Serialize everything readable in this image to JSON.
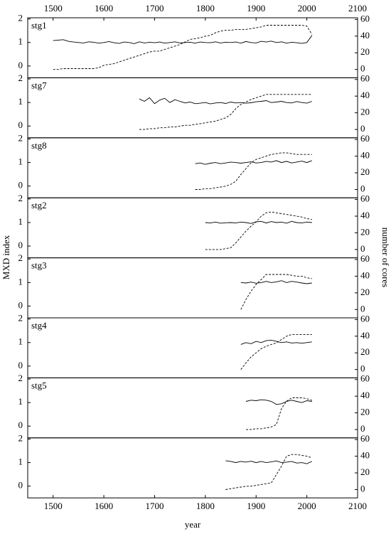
{
  "axis_labels": {
    "x": "year",
    "y": "MXD index",
    "y2": "number of cores"
  },
  "chart_data": [
    {
      "type": "line",
      "title": "stg1",
      "xlim": [
        1450,
        2100
      ],
      "ylim": [
        -0.5,
        2.05
      ],
      "y2lim": [
        -10,
        62
      ],
      "yticks": [
        0,
        1,
        2
      ],
      "y2ticks": [
        0,
        20,
        40,
        60
      ],
      "xticks": [
        1500,
        1600,
        1700,
        1800,
        1900,
        2000,
        2100
      ],
      "xtick_side": "top",
      "x": [
        1500,
        1510,
        1520,
        1530,
        1540,
        1550,
        1560,
        1570,
        1580,
        1590,
        1600,
        1610,
        1620,
        1630,
        1640,
        1650,
        1660,
        1670,
        1680,
        1690,
        1700,
        1710,
        1720,
        1730,
        1740,
        1750,
        1760,
        1770,
        1780,
        1790,
        1800,
        1810,
        1820,
        1830,
        1840,
        1850,
        1860,
        1870,
        1880,
        1890,
        1900,
        1910,
        1920,
        1930,
        1940,
        1950,
        1960,
        1970,
        1980,
        1990,
        2000,
        2010
      ],
      "series": [
        {
          "color": "#000000",
          "linestyle": "solid",
          "values": [
            1.08,
            1.1,
            1.12,
            1.05,
            1.02,
            1.0,
            0.98,
            1.03,
            1.01,
            0.97,
            1.0,
            1.04,
            0.99,
            0.96,
            1.02,
            1.0,
            0.95,
            1.03,
            0.98,
            1.01,
            0.99,
            1.02,
            0.97,
            1.0,
            1.03,
            0.98,
            1.0,
            1.01,
            0.97,
            1.02,
            1.0,
            0.99,
            1.03,
            0.98,
            1.01,
            1.0,
            1.02,
            0.97,
            1.04,
            1.0,
            0.98,
            1.05,
            1.02,
            1.06,
            1.0,
            1.03,
            0.97,
            1.01,
            0.99,
            0.96,
            1.0,
            1.3
          ]
        },
        {
          "color": "#000000",
          "linestyle": "dashed",
          "axis": "y2",
          "values": [
            0,
            0,
            1,
            1,
            1,
            1,
            1,
            1,
            1,
            2,
            5,
            6,
            7,
            9,
            11,
            13,
            15,
            17,
            19,
            21,
            22,
            22,
            24,
            26,
            28,
            30,
            33,
            36,
            37,
            38,
            40,
            41,
            44,
            46,
            47,
            47,
            48,
            48,
            48,
            49,
            50,
            51,
            53,
            53,
            53,
            53,
            53,
            53,
            53,
            53,
            52,
            42
          ]
        }
      ]
    },
    {
      "type": "line",
      "title": "stg7",
      "xlim": [
        1450,
        2100
      ],
      "ylim": [
        -0.5,
        2.05
      ],
      "y2lim": [
        -10,
        62
      ],
      "yticks": [
        0,
        1,
        2
      ],
      "y2ticks": [
        0,
        20,
        40,
        60
      ],
      "x": [
        1670,
        1680,
        1690,
        1700,
        1710,
        1720,
        1730,
        1740,
        1750,
        1760,
        1770,
        1780,
        1790,
        1800,
        1810,
        1820,
        1830,
        1840,
        1850,
        1860,
        1870,
        1880,
        1890,
        1900,
        1910,
        1920,
        1930,
        1940,
        1950,
        1960,
        1970,
        1980,
        1990,
        2000,
        2010
      ],
      "series": [
        {
          "color": "#000000",
          "linestyle": "solid",
          "values": [
            1.15,
            1.05,
            1.2,
            0.95,
            1.1,
            1.18,
            1.0,
            1.12,
            1.05,
            0.98,
            1.02,
            0.95,
            0.97,
            1.0,
            0.94,
            0.98,
            1.0,
            0.96,
            1.02,
            0.98,
            1.0,
            0.97,
            0.99,
            1.03,
            1.05,
            1.08,
            1.0,
            1.02,
            1.05,
            1.0,
            0.98,
            1.04,
            1.0,
            0.97,
            1.05
          ]
        },
        {
          "color": "#000000",
          "linestyle": "dashed",
          "axis": "y2",
          "values": [
            0,
            0,
            1,
            1,
            2,
            2,
            3,
            3,
            4,
            5,
            5,
            6,
            7,
            8,
            9,
            10,
            12,
            14,
            18,
            25,
            30,
            33,
            36,
            38,
            40,
            42,
            42,
            42,
            42,
            42,
            42,
            42,
            42,
            42,
            42
          ]
        }
      ]
    },
    {
      "type": "line",
      "title": "stg8",
      "xlim": [
        1450,
        2100
      ],
      "ylim": [
        -0.5,
        2.05
      ],
      "y2lim": [
        -10,
        62
      ],
      "yticks": [
        0,
        1,
        2
      ],
      "y2ticks": [
        0,
        20,
        40,
        60
      ],
      "x": [
        1780,
        1790,
        1800,
        1810,
        1820,
        1830,
        1840,
        1850,
        1860,
        1870,
        1880,
        1890,
        1900,
        1910,
        1920,
        1930,
        1940,
        1950,
        1960,
        1970,
        1980,
        1990,
        2000,
        2010
      ],
      "series": [
        {
          "color": "#000000",
          "linestyle": "solid",
          "values": [
            0.95,
            0.98,
            0.92,
            0.97,
            1.0,
            0.95,
            0.98,
            1.02,
            1.0,
            0.97,
            1.0,
            1.03,
            0.98,
            1.0,
            1.05,
            1.02,
            1.08,
            1.0,
            1.05,
            0.98,
            1.02,
            1.06,
            1.0,
            1.08
          ]
        },
        {
          "color": "#000000",
          "linestyle": "dashed",
          "axis": "y2",
          "values": [
            0,
            0,
            1,
            1,
            2,
            3,
            4,
            6,
            10,
            18,
            25,
            32,
            36,
            38,
            40,
            42,
            43,
            44,
            44,
            43,
            42,
            42,
            42,
            42
          ]
        }
      ]
    },
    {
      "type": "line",
      "title": "stg2",
      "xlim": [
        1450,
        2100
      ],
      "ylim": [
        -0.5,
        2.05
      ],
      "y2lim": [
        -10,
        62
      ],
      "yticks": [
        0,
        1,
        2
      ],
      "y2ticks": [
        0,
        20,
        40,
        60
      ],
      "x": [
        1800,
        1810,
        1820,
        1830,
        1840,
        1850,
        1860,
        1870,
        1880,
        1890,
        1900,
        1910,
        1920,
        1930,
        1940,
        1950,
        1960,
        1970,
        1980,
        1990,
        2000,
        2010
      ],
      "series": [
        {
          "color": "#000000",
          "linestyle": "solid",
          "values": [
            1.0,
            0.98,
            1.02,
            0.97,
            0.99,
            1.0,
            0.98,
            1.02,
            1.0,
            0.96,
            1.03,
            1.05,
            0.98,
            1.04,
            1.0,
            1.02,
            0.97,
            1.05,
            1.0,
            0.98,
            1.02,
            1.0
          ]
        },
        {
          "color": "#000000",
          "linestyle": "dashed",
          "axis": "y2",
          "values": [
            0,
            0,
            0,
            0,
            1,
            2,
            8,
            15,
            22,
            28,
            33,
            40,
            44,
            45,
            44,
            43,
            42,
            41,
            40,
            39,
            37,
            36
          ]
        }
      ]
    },
    {
      "type": "line",
      "title": "stg3",
      "xlim": [
        1450,
        2100
      ],
      "ylim": [
        -0.5,
        2.05
      ],
      "y2lim": [
        -10,
        62
      ],
      "yticks": [
        0,
        1,
        2
      ],
      "y2ticks": [
        0,
        20,
        40,
        60
      ],
      "x": [
        1870,
        1880,
        1890,
        1900,
        1910,
        1920,
        1930,
        1940,
        1950,
        1960,
        1970,
        1980,
        1990,
        2000,
        2010
      ],
      "series": [
        {
          "color": "#000000",
          "linestyle": "solid",
          "values": [
            1.0,
            0.98,
            1.02,
            0.97,
            1.0,
            1.05,
            1.0,
            1.03,
            1.08,
            1.0,
            1.05,
            1.02,
            0.98,
            0.95,
            0.98
          ]
        },
        {
          "color": "#000000",
          "linestyle": "dashed",
          "axis": "y2",
          "values": [
            0,
            12,
            22,
            30,
            36,
            42,
            42,
            42,
            42,
            42,
            41,
            40,
            40,
            38,
            37
          ]
        }
      ]
    },
    {
      "type": "line",
      "title": "stg4",
      "xlim": [
        1450,
        2100
      ],
      "ylim": [
        -0.5,
        2.05
      ],
      "y2lim": [
        -10,
        62
      ],
      "yticks": [
        0,
        1,
        2
      ],
      "y2ticks": [
        0,
        20,
        40,
        60
      ],
      "x": [
        1870,
        1880,
        1890,
        1900,
        1910,
        1920,
        1930,
        1940,
        1950,
        1960,
        1970,
        1980,
        1990,
        2000,
        2010
      ],
      "series": [
        {
          "color": "#000000",
          "linestyle": "solid",
          "values": [
            0.92,
            1.0,
            0.95,
            1.05,
            1.0,
            1.08,
            1.1,
            1.05,
            1.0,
            1.03,
            0.98,
            1.0,
            0.97,
            1.0,
            1.03
          ]
        },
        {
          "color": "#000000",
          "linestyle": "dashed",
          "axis": "y2",
          "values": [
            0,
            8,
            15,
            20,
            25,
            28,
            30,
            32,
            36,
            40,
            42,
            42,
            42,
            42,
            42
          ]
        }
      ]
    },
    {
      "type": "line",
      "title": "stg5",
      "xlim": [
        1450,
        2100
      ],
      "ylim": [
        -0.5,
        2.05
      ],
      "y2lim": [
        -10,
        62
      ],
      "yticks": [
        0,
        1,
        2
      ],
      "y2ticks": [
        0,
        20,
        40,
        60
      ],
      "x": [
        1880,
        1890,
        1900,
        1910,
        1920,
        1930,
        1940,
        1950,
        1960,
        1970,
        1980,
        1990,
        2000,
        2010
      ],
      "series": [
        {
          "color": "#000000",
          "linestyle": "solid",
          "values": [
            1.05,
            1.1,
            1.08,
            1.12,
            1.1,
            1.05,
            0.92,
            0.95,
            1.05,
            1.1,
            1.05,
            1.0,
            1.08,
            1.05
          ]
        },
        {
          "color": "#000000",
          "linestyle": "dashed",
          "axis": "y2",
          "values": [
            0,
            0,
            1,
            1,
            2,
            3,
            6,
            25,
            34,
            38,
            38,
            38,
            37,
            35
          ]
        }
      ]
    },
    {
      "type": "line",
      "xlim": [
        1450,
        2100
      ],
      "ylim": [
        -0.5,
        2.05
      ],
      "y2lim": [
        -10,
        62
      ],
      "yticks": [
        0,
        1,
        2
      ],
      "y2ticks": [
        0,
        20,
        40,
        60
      ],
      "xticks": [
        1500,
        1600,
        1700,
        1800,
        1900,
        2000,
        2100
      ],
      "xtick_side": "bottom",
      "x": [
        1840,
        1850,
        1860,
        1870,
        1880,
        1890,
        1900,
        1910,
        1920,
        1930,
        1940,
        1950,
        1960,
        1970,
        1980,
        1990,
        2000,
        2010
      ],
      "series": [
        {
          "color": "#000000",
          "linestyle": "solid",
          "values": [
            1.08,
            1.05,
            1.0,
            1.05,
            1.02,
            1.06,
            1.0,
            1.05,
            1.0,
            1.03,
            1.07,
            1.0,
            1.02,
            1.05,
            0.98,
            1.0,
            0.95,
            1.05
          ]
        },
        {
          "color": "#000000",
          "linestyle": "dashed",
          "axis": "y2",
          "values": [
            0,
            1,
            2,
            3,
            4,
            4,
            5,
            6,
            7,
            8,
            18,
            28,
            40,
            42,
            42,
            41,
            40,
            38
          ]
        }
      ]
    }
  ]
}
